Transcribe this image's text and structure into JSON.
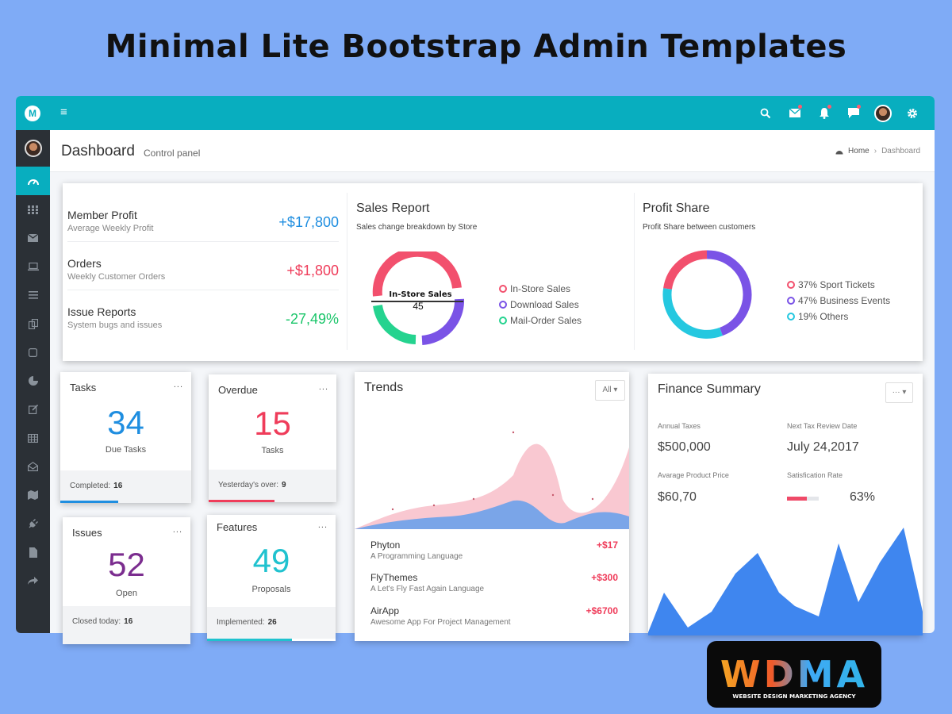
{
  "banner": {
    "title": "Minimal Lite Bootstrap Admin Templates"
  },
  "topbar": {
    "menu_icon": "menu-icon",
    "icons": [
      "search-icon",
      "mail-icon",
      "bell-icon",
      "chat-icon",
      "user-avatar",
      "gear-icon"
    ],
    "logo_letter": "M"
  },
  "sidebar": {
    "items": [
      "dashboard-icon",
      "grid-icon",
      "mail-icon",
      "laptop-icon",
      "list-icon",
      "copy-icon",
      "square-icon",
      "pie-chart-icon",
      "edit-icon",
      "table-icon",
      "envelope-open-icon",
      "map-icon",
      "plug-icon",
      "file-icon",
      "share-icon"
    ],
    "active_index": 0
  },
  "header": {
    "title": "Dashboard",
    "subtitle": "Control panel",
    "breadcrumb": {
      "home": "Home",
      "current": "Dashboard"
    }
  },
  "stats": [
    {
      "label": "Member Profit",
      "sub": "Average Weekly Profit",
      "value": "+$17,800",
      "color": "#1f8ee0"
    },
    {
      "label": "Orders",
      "sub": "Weekly Customer Orders",
      "value": "+$1,800",
      "color": "#ef3c5a"
    },
    {
      "label": "Issue Reports",
      "sub": "System bugs and issues",
      "value": "-27,49%",
      "color": "#19c569"
    }
  ],
  "sales_report": {
    "title": "Sales Report",
    "subtitle": "Sales change breakdown by Store",
    "center_label": "In-Store Sales",
    "center_value": "45",
    "legend": [
      {
        "label": "In-Store Sales",
        "color": "#f2506d"
      },
      {
        "label": "Download Sales",
        "color": "#7a53e6"
      },
      {
        "label": "Mail-Order Sales",
        "color": "#25d38f"
      }
    ]
  },
  "profit_share": {
    "title": "Profit Share",
    "subtitle": "Profit Share between customers",
    "legend": [
      {
        "label": "37% Sport Tickets",
        "color": "#f2506d",
        "value": 37
      },
      {
        "label": "47% Business Events",
        "color": "#7a53e6",
        "value": 47
      },
      {
        "label": "19% Others",
        "color": "#25c8e0",
        "value": 19
      }
    ]
  },
  "tasks": {
    "title": "Tasks",
    "more": "...",
    "number": "34",
    "desc": "Due Tasks",
    "footer_label": "Completed:",
    "footer_value": "16",
    "color": "#1f8ee0"
  },
  "overdue": {
    "title": "Overdue",
    "more": "...",
    "number": "15",
    "desc": "Tasks",
    "footer_label": "Yesterday's over:",
    "footer_value": "9",
    "color": "#ef3c5a"
  },
  "issues": {
    "title": "Issues",
    "more": "...",
    "number": "52",
    "desc": "Open",
    "footer_label": "Closed today:",
    "footer_value": "16",
    "color": "#7b2d8f"
  },
  "features": {
    "title": "Features",
    "more": "...",
    "number": "49",
    "desc": "Proposals",
    "footer_label": "Implemented:",
    "footer_value": "26",
    "color": "#20c2cf"
  },
  "trends": {
    "title": "Trends",
    "filter": "All ▾",
    "items": [
      {
        "name": "Phyton",
        "desc": "A Programming Language",
        "value": "+$17"
      },
      {
        "name": "FlyThemes",
        "desc": "A Let's Fly Fast Again Language",
        "value": "+$300"
      },
      {
        "name": "AirApp",
        "desc": "Awesome App For Project Management",
        "value": "+$6700"
      }
    ]
  },
  "finance": {
    "title": "Finance Summary",
    "menu": "··· ▾",
    "annual_taxes_label": "Annual Taxes",
    "annual_taxes_value": "$500,000",
    "next_review_label": "Next Tax Review Date",
    "next_review_value": "July 24,2017",
    "avg_price_label": "Avarage Product Price",
    "avg_price_value": "$60,70",
    "satisfaction_label": "Satisfication Rate",
    "satisfaction_value": "63%",
    "satisfaction_fraction": 0.63
  },
  "logo": {
    "name": "WDMA",
    "tagline": "WEBSITE DESIGN MARKETING AGENCY"
  },
  "colors": {
    "teal": "#08aebf",
    "sidebar": "#2b3036",
    "background": "#7fabf6"
  }
}
